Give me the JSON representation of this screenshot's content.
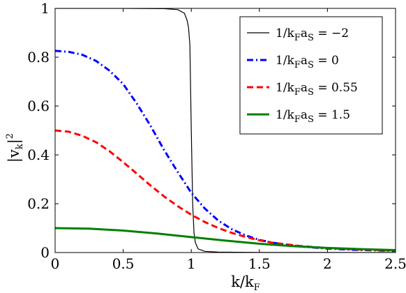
{
  "chart_data": {
    "type": "line",
    "title": "",
    "xlabel": "k/k",
    "xlabel_sub": "F",
    "ylabel": "|v",
    "ylabel_sub": "k",
    "ylabel_sup": "2",
    "ylabel_close": "|",
    "xlim": [
      0,
      2.5
    ],
    "ylim": [
      0,
      1
    ],
    "xticks": [
      0,
      0.5,
      1,
      1.5,
      2,
      2.5
    ],
    "xtick_labels": [
      "0",
      "0.5",
      "1",
      "1.5",
      "2",
      "2.5"
    ],
    "yticks": [
      0,
      0.2,
      0.4,
      0.6,
      0.8,
      1
    ],
    "ytick_labels": [
      "0",
      "0.2",
      "0.4",
      "0.6",
      "0.8",
      "1"
    ],
    "grid": false,
    "legend_position": "top-right",
    "series": [
      {
        "name": "1/k_F a_S = −2",
        "legend": {
          "pre": "1/k",
          "s1": "F",
          "mid": "a",
          "s2": "S",
          "post": " = −2"
        },
        "color": "#000000",
        "style": "solid",
        "width": 1.2,
        "x": [
          0,
          0.5,
          0.8,
          0.9,
          0.95,
          0.97,
          0.98,
          0.99,
          1.0,
          1.01,
          1.02,
          1.03,
          1.05,
          1.1,
          1.2,
          1.5,
          2.0,
          2.5
        ],
        "y": [
          1.0,
          1.0,
          0.999,
          0.995,
          0.98,
          0.95,
          0.92,
          0.85,
          0.5,
          0.2,
          0.08,
          0.04,
          0.015,
          0.005,
          0.002,
          0.0005,
          0.0002,
          0.0001
        ]
      },
      {
        "name": "1/k_F a_S = 0",
        "legend": {
          "pre": "1/k",
          "s1": "F",
          "mid": "a",
          "s2": "S",
          "post": " = 0"
        },
        "color": "#0000ff",
        "style": "dashdot",
        "width": 3,
        "x": [
          0,
          0.1,
          0.2,
          0.3,
          0.4,
          0.5,
          0.6,
          0.7,
          0.8,
          0.9,
          1.0,
          1.1,
          1.2,
          1.3,
          1.4,
          1.5,
          1.6,
          1.8,
          2.0,
          2.2,
          2.5
        ],
        "y": [
          0.826,
          0.822,
          0.81,
          0.785,
          0.745,
          0.69,
          0.61,
          0.52,
          0.42,
          0.33,
          0.245,
          0.18,
          0.13,
          0.095,
          0.07,
          0.052,
          0.04,
          0.025,
          0.016,
          0.011,
          0.007
        ]
      },
      {
        "name": "1/k_F a_S = 0.55",
        "legend": {
          "pre": "1/k",
          "s1": "F",
          "mid": "a",
          "s2": "S",
          "post": " = 0.55"
        },
        "color": "#ff0000",
        "style": "dashed",
        "width": 3,
        "x": [
          0,
          0.1,
          0.2,
          0.3,
          0.4,
          0.5,
          0.6,
          0.7,
          0.8,
          0.9,
          1.0,
          1.1,
          1.2,
          1.3,
          1.4,
          1.5,
          1.6,
          1.8,
          2.0,
          2.2,
          2.5
        ],
        "y": [
          0.5,
          0.495,
          0.478,
          0.452,
          0.415,
          0.37,
          0.323,
          0.275,
          0.23,
          0.19,
          0.155,
          0.125,
          0.1,
          0.08,
          0.064,
          0.05,
          0.04,
          0.027,
          0.018,
          0.013,
          0.008
        ]
      },
      {
        "name": "1/k_F a_S = 1.5",
        "legend": {
          "pre": "1/k",
          "s1": "F",
          "mid": "a",
          "s2": "S",
          "post": " = 1.5"
        },
        "color": "#008000",
        "style": "solid",
        "width": 3,
        "x": [
          0,
          0.25,
          0.5,
          0.75,
          1.0,
          1.25,
          1.5,
          1.75,
          2.0,
          2.25,
          2.5
        ],
        "y": [
          0.1,
          0.098,
          0.09,
          0.078,
          0.063,
          0.049,
          0.036,
          0.026,
          0.019,
          0.014,
          0.01
        ]
      }
    ]
  }
}
